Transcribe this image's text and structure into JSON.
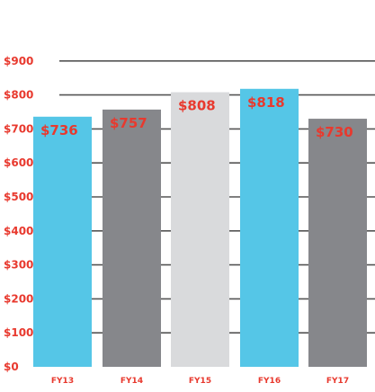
{
  "chart_data": {
    "type": "bar",
    "categories": [
      "FY13",
      "FY14",
      "FY15",
      "FY16",
      "FY17"
    ],
    "values": [
      736,
      757,
      808,
      818,
      730
    ],
    "value_labels": [
      "$736",
      "$757",
      "$808",
      "$818",
      "$730"
    ],
    "y_tick_values": [
      0,
      100,
      200,
      300,
      400,
      500,
      600,
      700,
      800,
      900
    ],
    "y_tick_labels": [
      "$0",
      "$100",
      "$200",
      "$300",
      "$400",
      "$500",
      "$600",
      "$700",
      "$800",
      "$900"
    ],
    "ylim": [
      0,
      900
    ],
    "grid": true,
    "legend": "none",
    "bar_colors": [
      "#55c6e7",
      "#86878b",
      "#d9dadc",
      "#55c6e7",
      "#86878b"
    ],
    "grid_color": "#555555",
    "label_color": "#e8392e"
  }
}
